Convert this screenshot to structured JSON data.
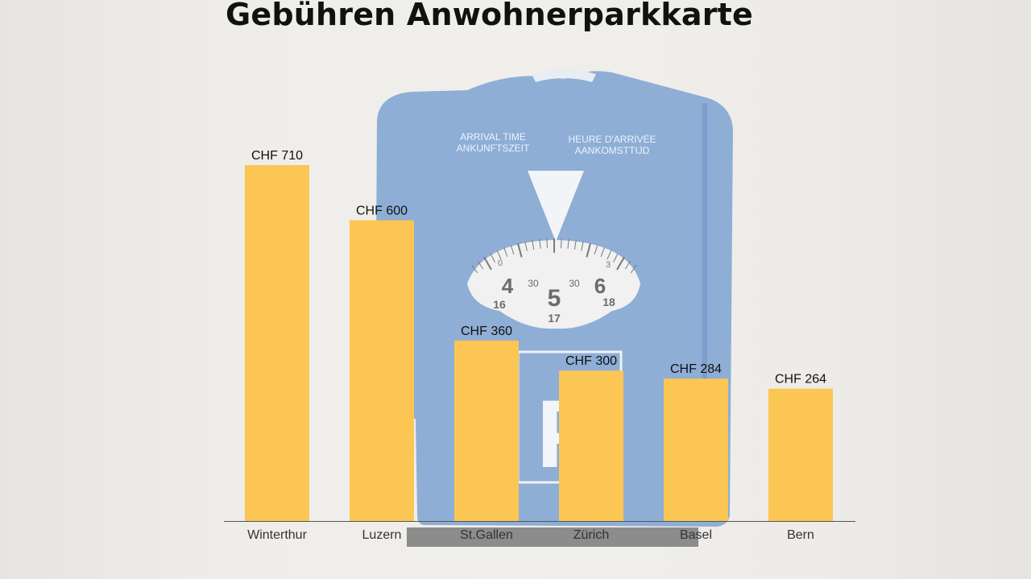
{
  "title": "Gebühren Anwohnerparkkarte",
  "chart_data": {
    "type": "bar",
    "title": "Gebühren Anwohnerparkkarte",
    "categories": [
      "Winterthur",
      "Luzern",
      "St.Gallen",
      "Zürich",
      "Basel",
      "Bern"
    ],
    "values": [
      710,
      600,
      360,
      300,
      284,
      264
    ],
    "value_labels": [
      "CHF 710",
      "CHF 600",
      "CHF 360",
      "CHF 300",
      "CHF 284",
      "CHF 264"
    ],
    "unit": "CHF",
    "ylim": [
      0,
      710
    ],
    "grid": false,
    "legend": "none",
    "bar_color": "#fbc653"
  },
  "background_disc": {
    "arrival_en": "ARRIVAL TIME",
    "arrival_de": "ANKUNFTSZEIT",
    "arrival_fr": "HEURE D'ARRIVÉE",
    "arrival_nl": "AANKOMSTTIJD",
    "dial_hours": [
      "4",
      "5",
      "6"
    ],
    "dial_pm": [
      "16",
      "17",
      "18"
    ],
    "dial_half": [
      "30",
      "30"
    ],
    "dial_edge": [
      "0",
      "3"
    ],
    "parking_letter": "P",
    "color": "#8eaed6"
  }
}
